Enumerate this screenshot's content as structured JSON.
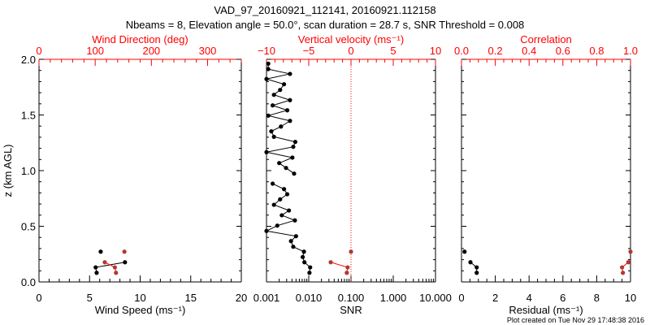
{
  "title": "VAD_97_20160921_112141, 20160921.112158",
  "subtitle": "Nbeams = 8, Elevation angle = 50.0°, scan duration = 28.7 s, SNR Threshold = 0.008",
  "footer": "Plot created on Tue Nov 29 17:48:38 2016",
  "ylabel": "z (km AGL)",
  "colors": {
    "primary": "#000000",
    "secondary": "#ff0000",
    "secondary_marker": "#b03a2e"
  },
  "chart_data": [
    {
      "type": "line",
      "name": "wind",
      "xlabel": "Wind Speed (ms⁻¹)",
      "top_label": "Wind Direction (deg)",
      "ylim": [
        0,
        2.0
      ],
      "yticks": [
        "0.0",
        "0.5",
        "1.0",
        "1.5",
        "2.0"
      ],
      "xlim": [
        0,
        20
      ],
      "xticks": [
        "0",
        "5",
        "10",
        "15",
        "20"
      ],
      "top_xlim": [
        0,
        360
      ],
      "top_xticks": [
        "0",
        "100",
        "200",
        "300"
      ],
      "z": [
        0.082,
        0.131,
        0.177,
        0.272
      ],
      "series": [
        {
          "name": "Wind Speed",
          "axis": "bottom",
          "values": [
            5.7,
            5.6,
            8.5,
            6.1
          ]
        },
        {
          "name": "Wind Direction",
          "axis": "top",
          "values": [
            137,
            135,
            117,
            152
          ]
        }
      ]
    },
    {
      "type": "line",
      "name": "snr",
      "xlabel": "SNR",
      "top_label": "Vertical velocity (ms⁻¹)",
      "ylim": [
        0,
        2.0
      ],
      "xscale": "log",
      "xlim": [
        0.001,
        10
      ],
      "xticks": [
        "0.001",
        "0.010",
        "0.100",
        "1.000",
        "10.000"
      ],
      "top_xlim": [
        -10,
        10
      ],
      "top_xticks": [
        "−10",
        "−5",
        "0",
        "5",
        "10"
      ],
      "reference_line": {
        "axis": "top",
        "value": 0
      },
      "series": [
        {
          "name": "SNR",
          "axis": "bottom",
          "z": [
            0.082,
            0.131,
            0.177,
            0.224,
            0.272,
            0.316,
            0.367,
            0.411,
            0.458,
            0.506,
            0.553,
            0.599,
            0.642,
            0.693,
            0.742,
            0.788,
            0.834,
            0.883,
            0.973,
            1.024,
            1.068,
            1.117,
            1.166,
            1.214,
            1.258,
            1.304,
            1.353,
            1.396,
            1.447,
            1.494,
            1.542,
            1.586,
            1.633,
            1.681,
            1.725,
            1.776,
            1.823,
            1.869,
            1.912,
            1.961
          ],
          "values": [
            0.0104,
            0.0108,
            0.0079,
            0.0072,
            0.0077,
            0.0043,
            0.0038,
            0.005,
            0.001,
            0.0018,
            0.0047,
            0.0023,
            0.0034,
            0.0015,
            0.0021,
            0.0031,
            0.0026,
            0.0014,
            0.0045,
            0.0029,
            0.002,
            0.0041,
            0.001,
            0.0043,
            0.0048,
            0.0015,
            0.0013,
            0.0022,
            0.0036,
            0.0011,
            0.0031,
            0.0014,
            0.0036,
            0.0015,
            0.0021,
            0.0026,
            0.001,
            0.0036,
            0.0011,
            0.0011
          ]
        },
        {
          "name": "Vertical velocity",
          "axis": "top",
          "z": [
            0.082,
            0.131,
            0.177,
            0.272
          ],
          "values": [
            -0.5,
            -0.4,
            -2.4,
            0.0
          ]
        }
      ]
    },
    {
      "type": "line",
      "name": "residual",
      "xlabel": "Residual (ms⁻¹)",
      "top_label": "Correlation",
      "ylim": [
        0,
        2.0
      ],
      "xlim": [
        0,
        10
      ],
      "xticks": [
        "0",
        "2",
        "4",
        "6",
        "8",
        "10"
      ],
      "top_xlim": [
        0,
        1
      ],
      "top_xticks": [
        "0.0",
        "0.2",
        "0.4",
        "0.6",
        "0.8",
        "1.0"
      ],
      "z": [
        0.082,
        0.131,
        0.177,
        0.272
      ],
      "series": [
        {
          "name": "Residual",
          "axis": "bottom",
          "values": [
            0.9,
            0.9,
            0.53,
            0.18
          ]
        },
        {
          "name": "Correlation",
          "axis": "top",
          "values": [
            0.955,
            0.95,
            0.987,
            1.0
          ]
        }
      ]
    }
  ]
}
